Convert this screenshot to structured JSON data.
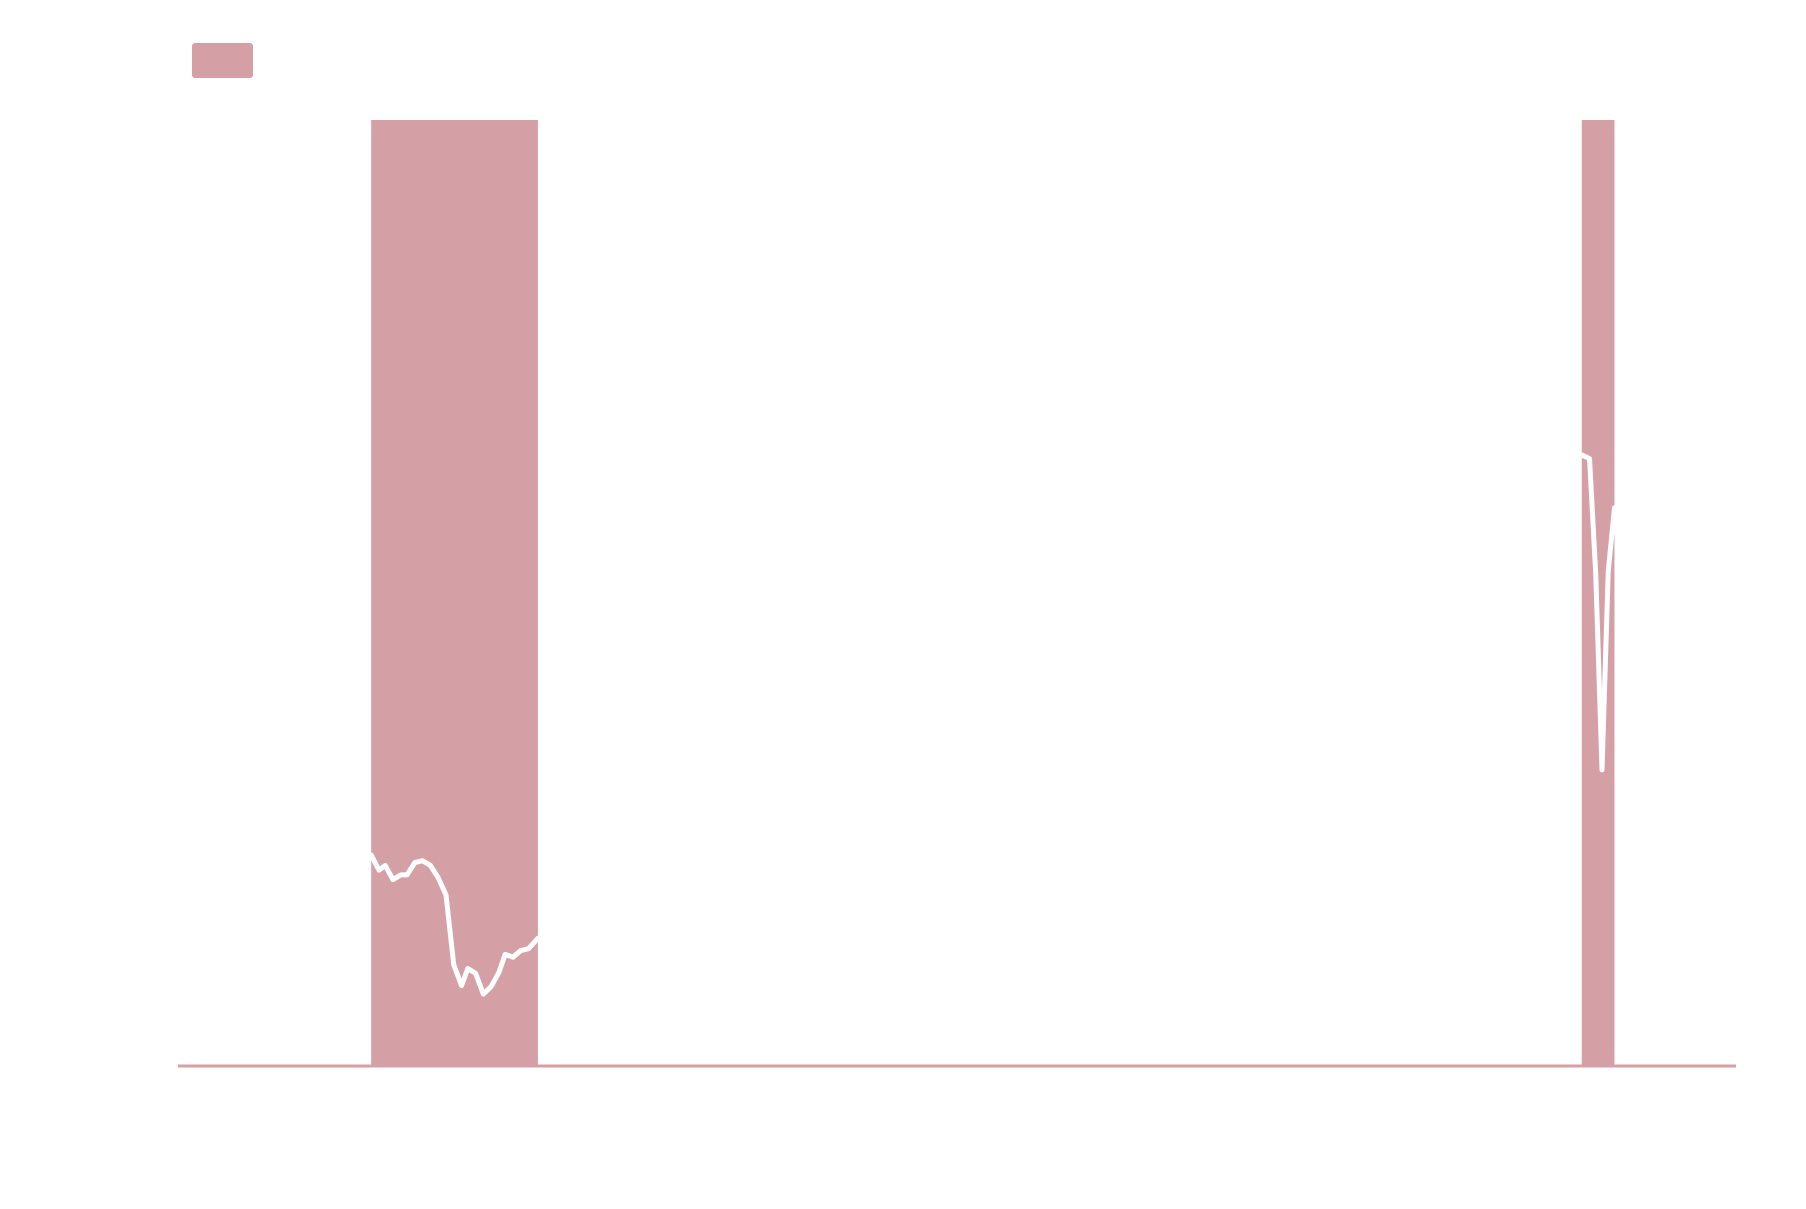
{
  "colors": {
    "background": "#ffffff",
    "recession_band": "#d4a0a6",
    "series_line": "#ffffff",
    "axis": "#d4a0a6"
  },
  "legend": {
    "placement": "top-left",
    "label": ""
  },
  "chart_data": {
    "type": "line",
    "title": "",
    "xlabel": "",
    "ylabel": "",
    "grid": false,
    "xlim": [
      0,
      100
    ],
    "ylim": [
      0,
      100
    ],
    "shaded_bands": [
      {
        "start": 12.4,
        "end": 23.1
      },
      {
        "start": 90.1,
        "end": 92.2
      }
    ],
    "segments": [
      {
        "x": [
          12.4,
          12.9,
          13.3,
          13.8,
          14.3,
          14.7,
          15.2,
          15.7,
          16.2,
          16.7,
          17.2,
          17.7,
          18.2,
          18.6,
          19.1,
          19.6,
          20.1,
          20.6,
          21.0,
          21.5,
          22.0,
          22.5,
          23.1
        ],
        "y": [
          22.3,
          20.7,
          21.2,
          19.7,
          20.2,
          20.2,
          21.5,
          21.7,
          21.2,
          19.9,
          18.1,
          10.7,
          8.5,
          10.3,
          9.8,
          7.6,
          8.4,
          9.9,
          11.8,
          11.5,
          12.2,
          12.4,
          13.5
        ]
      },
      {
        "x": [
          90.1,
          90.6,
          91.0,
          91.4,
          91.8,
          92.2
        ],
        "y": [
          64.6,
          64.2,
          51.9,
          31.3,
          52.3,
          59.0
        ]
      }
    ]
  }
}
